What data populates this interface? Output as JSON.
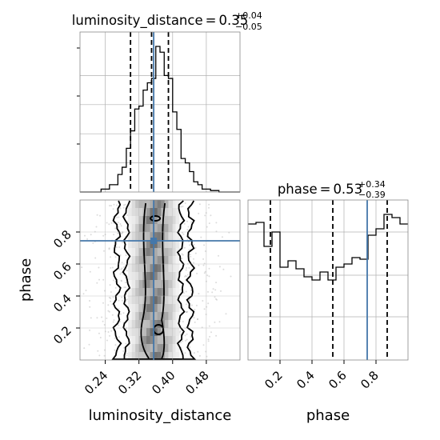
{
  "chart_data": [
    {
      "type": "histogram",
      "panel": "luminosity_distance marginal",
      "title_param": "luminosity_distance",
      "title_value": "0.35",
      "title_plus": "+0.04",
      "title_minus": "−0.05",
      "xlim": [
        0.18,
        0.56
      ],
      "bin_edges": [
        0.18,
        0.19,
        0.2,
        0.21,
        0.22,
        0.23,
        0.24,
        0.25,
        0.26,
        0.27,
        0.28,
        0.29,
        0.3,
        0.31,
        0.32,
        0.33,
        0.34,
        0.35,
        0.36,
        0.37,
        0.38,
        0.39,
        0.4,
        0.41,
        0.42,
        0.43,
        0.44,
        0.45,
        0.46,
        0.47,
        0.48,
        0.49,
        0.5,
        0.51,
        0.52,
        0.53,
        0.54,
        0.55,
        0.56
      ],
      "counts": [
        0,
        0,
        0,
        0,
        0,
        0.02,
        0.02,
        0.05,
        0.05,
        0.12,
        0.17,
        0.3,
        0.42,
        0.57,
        0.59,
        0.7,
        0.75,
        0.78,
        1.0,
        0.96,
        0.8,
        0.78,
        0.55,
        0.43,
        0.23,
        0.2,
        0.14,
        0.07,
        0.05,
        0.02,
        0.02,
        0.01,
        0.01,
        0,
        0,
        0,
        0,
        0
      ],
      "quantile_lines": [
        0.3,
        0.35,
        0.39
      ],
      "truth": 0.355
    },
    {
      "type": "histogram",
      "panel": "phase marginal",
      "title_param": "phase",
      "title_value": "0.53",
      "title_plus": "+0.34",
      "title_minus": "−0.39",
      "xlim": [
        0.0,
        1.0
      ],
      "bin_edges": [
        0.0,
        0.05,
        0.1,
        0.15,
        0.2,
        0.25,
        0.3,
        0.35,
        0.4,
        0.45,
        0.5,
        0.55,
        0.6,
        0.65,
        0.7,
        0.75,
        0.8,
        0.85,
        0.9,
        0.95,
        1.0
      ],
      "counts": [
        0.85,
        0.86,
        0.71,
        0.8,
        0.58,
        0.62,
        0.57,
        0.52,
        0.5,
        0.55,
        0.5,
        0.58,
        0.6,
        0.64,
        0.63,
        0.78,
        0.82,
        0.91,
        0.89,
        0.85
      ],
      "xticks": [
        0.2,
        0.4,
        0.6,
        0.8
      ],
      "xtick_labels": [
        "0.2",
        "0.4",
        "0.6",
        "0.8"
      ],
      "xlabel": "phase",
      "quantile_lines": [
        0.14,
        0.53,
        0.87
      ],
      "truth": 0.745
    },
    {
      "type": "2d-density",
      "panel": "luminosity_distance vs phase",
      "xlim": [
        0.18,
        0.56
      ],
      "ylim": [
        0.0,
        1.0
      ],
      "xticks": [
        0.24,
        0.32,
        0.4,
        0.48
      ],
      "xtick_labels": [
        "0.24",
        "0.32",
        "0.40",
        "0.48"
      ],
      "yticks": [
        0.2,
        0.4,
        0.6,
        0.8
      ],
      "ytick_labels": [
        "0.2",
        "0.4",
        "0.6",
        "0.8"
      ],
      "xlabel": "luminosity_distance",
      "ylabel": "phase",
      "density_center_x": 0.355,
      "truth": [
        0.355,
        0.745
      ],
      "contour_levels": [
        "outer",
        "mid",
        "inner"
      ]
    }
  ],
  "colors": {
    "truth_line": "#4477aa",
    "hist_line": "#000000",
    "grid": "#b0b0b0"
  }
}
